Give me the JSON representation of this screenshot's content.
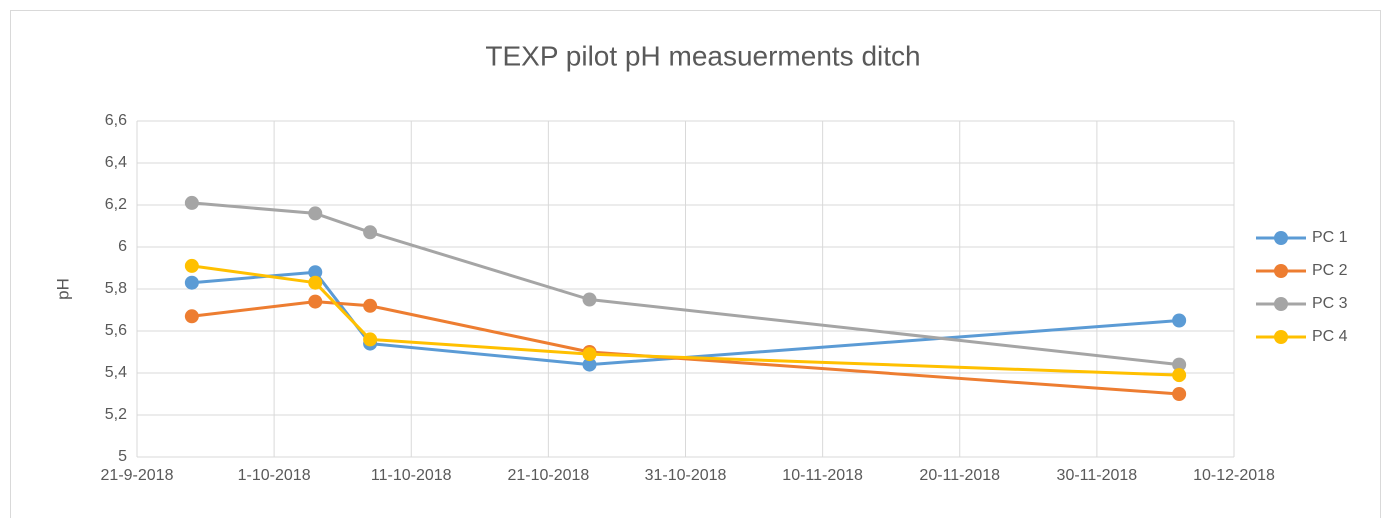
{
  "chart_data": {
    "type": "line",
    "title": "TEXP pilot pH measuerments ditch",
    "y_label": "pH",
    "x": [
      "25-9-2018",
      "4-10-2018",
      "8-10-2018",
      "24-10-2018",
      "6-12-2018"
    ],
    "xlim": [
      "21-9-2018",
      "10-12-2018"
    ],
    "xticks": [
      "21-9-2018",
      "1-10-2018",
      "11-10-2018",
      "21-10-2018",
      "31-10-2018",
      "10-11-2018",
      "20-11-2018",
      "30-11-2018",
      "10-12-2018"
    ],
    "ylim": [
      5,
      6.6
    ],
    "yticks": [
      5,
      {
        "value": 5.2,
        "label": "5,2"
      },
      {
        "value": 5.4,
        "label": "5,4"
      },
      {
        "value": 5.6,
        "label": "5,6"
      },
      {
        "value": 5.8,
        "label": "5,8"
      },
      6,
      {
        "value": 6.2,
        "label": "6,2"
      },
      {
        "value": 6.4,
        "label": "6,4"
      },
      {
        "value": 6.6,
        "label": "6,6"
      }
    ],
    "grid": true,
    "legend": "right",
    "series": [
      {
        "name": "PC 1",
        "color": "#5b9bd5",
        "values": [
          5.83,
          5.88,
          5.54,
          5.44,
          5.65
        ]
      },
      {
        "name": "PC 2",
        "color": "#ed7d31",
        "values": [
          5.67,
          5.74,
          5.72,
          5.5,
          5.3
        ]
      },
      {
        "name": "PC 3",
        "color": "#a5a5a5",
        "values": [
          6.21,
          6.16,
          6.07,
          5.75,
          5.44
        ]
      },
      {
        "name": "PC 4",
        "color": "#ffc000",
        "values": [
          5.91,
          5.83,
          5.56,
          5.49,
          5.39
        ]
      }
    ]
  }
}
